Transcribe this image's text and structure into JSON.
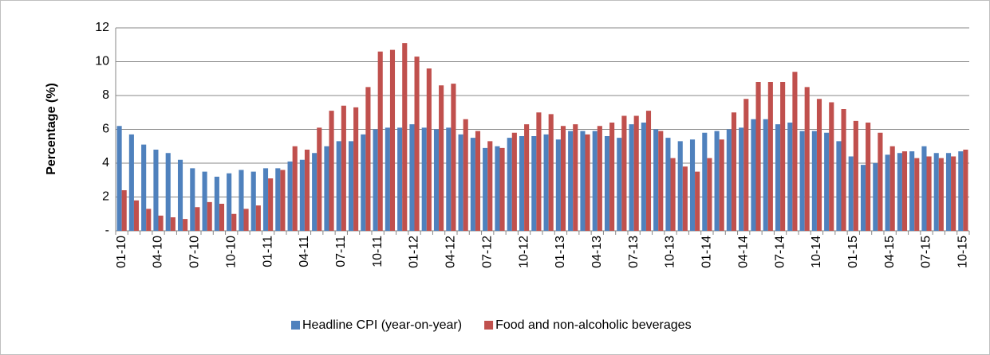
{
  "chart_data": {
    "type": "bar",
    "y_label": "Percentage (%)",
    "categories": [
      "01-10",
      null,
      null,
      "04-10",
      null,
      null,
      "07-10",
      null,
      null,
      "10-10",
      null,
      null,
      "01-11",
      null,
      null,
      "04-11",
      null,
      null,
      "07-11",
      null,
      null,
      "10-11",
      null,
      null,
      "01-12",
      null,
      null,
      "04-12",
      null,
      null,
      "07-12",
      null,
      null,
      "10-12",
      null,
      null,
      "01-13",
      null,
      null,
      "04-13",
      null,
      null,
      "07-13",
      null,
      null,
      "10-13",
      null,
      null,
      "01-14",
      null,
      null,
      "04-14",
      null,
      null,
      "07-14",
      null,
      null,
      "10-14",
      null,
      null,
      "01-15",
      null,
      null,
      "04-15",
      null,
      null,
      "07-15",
      null,
      null,
      "10-15"
    ],
    "series": [
      {
        "name": "Headline CPI (year-on-year)",
        "color": "#4f81bd",
        "values": [
          6.2,
          5.7,
          5.1,
          4.8,
          4.6,
          4.2,
          3.7,
          3.5,
          3.2,
          3.4,
          3.6,
          3.5,
          3.7,
          3.7,
          4.1,
          4.2,
          4.6,
          5.0,
          5.3,
          5.3,
          5.7,
          6.0,
          6.1,
          6.1,
          6.3,
          6.1,
          6.0,
          6.1,
          5.7,
          5.5,
          4.9,
          5.0,
          5.5,
          5.6,
          5.6,
          5.7,
          5.4,
          5.9,
          5.9,
          5.9,
          5.6,
          5.5,
          6.3,
          6.4,
          6.0,
          5.5,
          5.3,
          5.4,
          5.8,
          5.9,
          6.0,
          6.1,
          6.6,
          6.6,
          6.3,
          6.4,
          5.9,
          5.9,
          5.8,
          5.3,
          4.4,
          3.9,
          4.0,
          4.5,
          4.6,
          4.7,
          5.0,
          4.6,
          4.6,
          4.7
        ]
      },
      {
        "name": "Food and non-alcoholic beverages",
        "color": "#c0504d",
        "values": [
          2.4,
          1.8,
          1.3,
          0.9,
          0.8,
          0.7,
          1.4,
          1.7,
          1.6,
          1.0,
          1.3,
          1.5,
          3.1,
          3.6,
          5.0,
          4.8,
          6.1,
          7.1,
          7.4,
          7.3,
          8.5,
          10.6,
          10.7,
          11.1,
          10.3,
          9.6,
          8.6,
          8.7,
          6.6,
          5.9,
          5.3,
          4.9,
          5.8,
          6.3,
          7.0,
          6.9,
          6.2,
          6.3,
          5.7,
          6.2,
          6.4,
          6.8,
          6.8,
          7.1,
          5.9,
          4.3,
          3.8,
          3.5,
          4.3,
          5.4,
          7.0,
          7.8,
          8.8,
          8.8,
          8.8,
          9.4,
          8.5,
          7.8,
          7.6,
          7.2,
          6.5,
          6.4,
          5.8,
          5.0,
          4.7,
          4.3,
          4.4,
          4.3,
          4.4,
          4.8
        ]
      }
    ],
    "ylim": [
      0,
      12
    ],
    "yticks": [
      {
        "value": 0,
        "label": "-"
      },
      2,
      4,
      6,
      8,
      10,
      12
    ],
    "grid": true
  }
}
